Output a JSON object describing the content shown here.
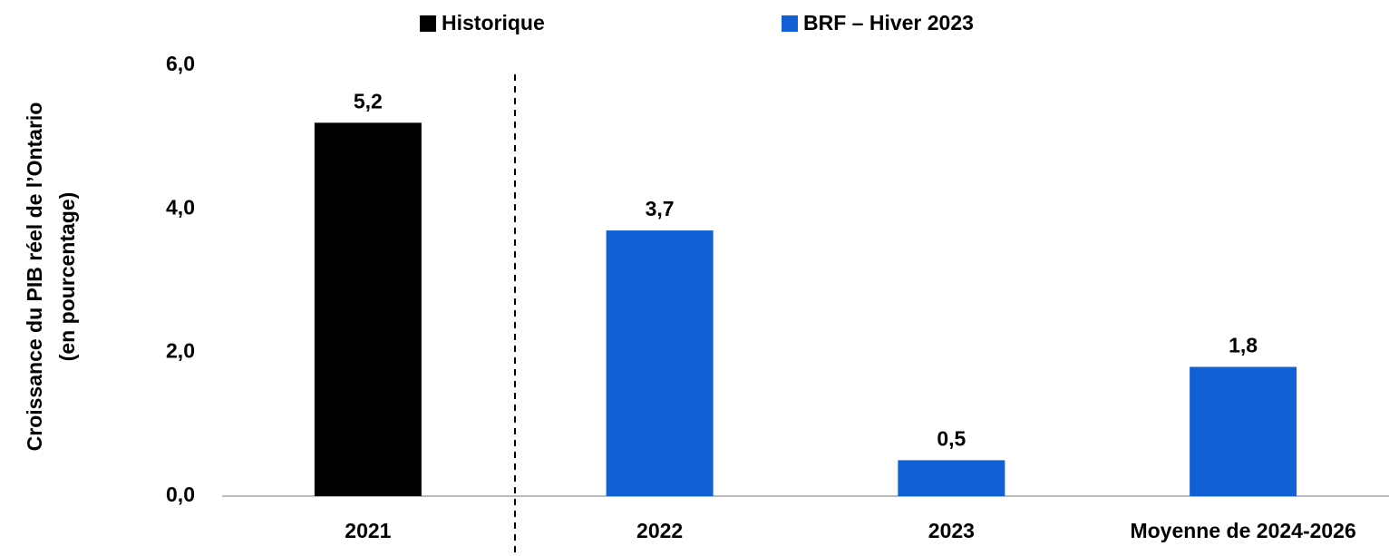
{
  "chart_data": {
    "type": "bar",
    "y_label": [
      "Croissance du PIB réel de l’Ontario",
      "(en pourcentage)"
    ],
    "categories": [
      "2021",
      "2022",
      "2023",
      "Moyenne de 2024-2026"
    ],
    "series": [
      {
        "name": "Historique",
        "color": "#000000",
        "values": [
          5.2,
          null,
          null,
          null
        ],
        "value_labels": [
          "5,2",
          null,
          null,
          null
        ]
      },
      {
        "name": "BRF – Hiver 2023",
        "color": "#1260d6",
        "values": [
          null,
          3.7,
          0.5,
          1.8
        ],
        "value_labels": [
          null,
          "3,7",
          "0,5",
          "1,8"
        ]
      }
    ],
    "ylim": [
      0,
      6
    ],
    "yticks": [
      {
        "value": 0,
        "label": "0,0"
      },
      {
        "value": 2,
        "label": "2,0"
      },
      {
        "value": 4,
        "label": "4,0"
      },
      {
        "value": 6,
        "label": "6,0"
      }
    ],
    "grid": false,
    "legend": "top"
  }
}
